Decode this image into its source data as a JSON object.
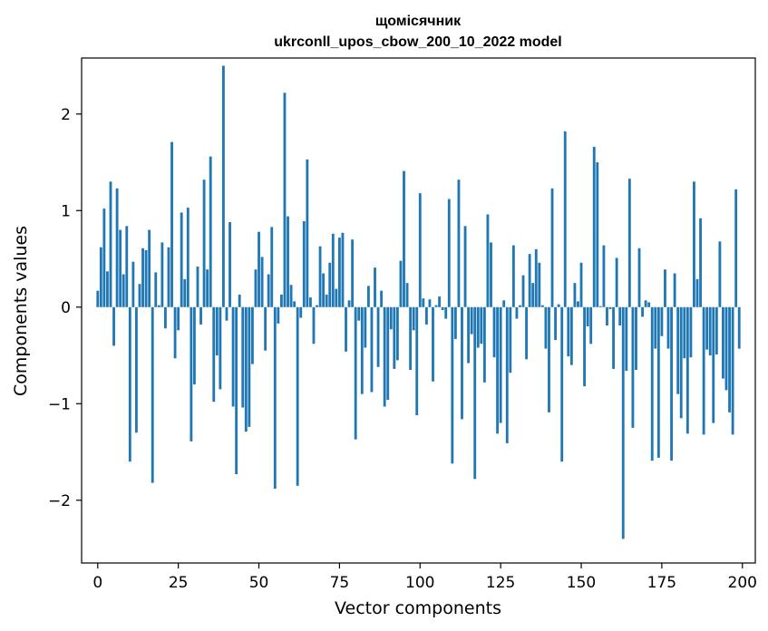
{
  "chart_data": {
    "type": "bar",
    "title_line1": "щомісячник",
    "title_line2": "ukrconll_upos_cbow_200_10_2022 model",
    "xlabel": "Vector components",
    "ylabel": "Components values",
    "xlim": [
      -5,
      204
    ],
    "ylim": [
      -2.65,
      2.58
    ],
    "xticks": [
      0,
      25,
      50,
      75,
      100,
      125,
      150,
      175,
      200
    ],
    "yticks": [
      -2,
      -1,
      0,
      1,
      2
    ],
    "bar_color": "#1f77b4",
    "values": [
      0.17,
      0.62,
      1.02,
      0.37,
      1.3,
      -0.4,
      1.23,
      0.8,
      0.34,
      0.84,
      -1.6,
      0.47,
      -1.3,
      0.24,
      0.61,
      0.59,
      0.8,
      -1.82,
      0.36,
      0.02,
      0.67,
      -0.22,
      0.62,
      1.71,
      -0.53,
      -0.24,
      0.98,
      0.29,
      1.03,
      -1.39,
      -0.8,
      0.42,
      -0.18,
      1.32,
      0.39,
      1.56,
      -0.98,
      -0.5,
      -0.85,
      2.5,
      -0.14,
      0.88,
      -1.03,
      -1.73,
      0.13,
      -1.04,
      -1.29,
      -1.24,
      -0.59,
      0.39,
      0.78,
      0.52,
      -0.45,
      0.34,
      0.83,
      -1.88,
      -0.17,
      0.13,
      2.22,
      0.94,
      0.23,
      0.06,
      -1.85,
      -0.11,
      0.89,
      1.53,
      0.1,
      -0.38,
      0.02,
      0.63,
      0.35,
      0.13,
      0.46,
      0.76,
      0.19,
      0.72,
      0.77,
      -0.46,
      0.07,
      0.7,
      -1.37,
      -0.14,
      -0.9,
      -0.42,
      0.22,
      -0.88,
      0.41,
      -0.62,
      0.17,
      -1.03,
      -0.96,
      -0.23,
      -0.64,
      -0.55,
      0.48,
      1.41,
      0.25,
      -0.65,
      -0.24,
      -1.12,
      1.18,
      0.09,
      -0.18,
      0.08,
      -0.77,
      0.02,
      0.11,
      -0.03,
      -0.12,
      1.12,
      -1.62,
      -0.33,
      1.32,
      -1.16,
      0.84,
      -0.58,
      -0.28,
      -1.78,
      -0.42,
      -0.38,
      -0.78,
      0.96,
      0.67,
      -0.52,
      -1.31,
      -1.2,
      0.07,
      -1.41,
      -0.68,
      0.64,
      -0.12,
      0.02,
      0.33,
      -0.54,
      0.55,
      0.25,
      0.6,
      0.46,
      0.02,
      -0.43,
      -1.09,
      1.23,
      -0.34,
      0.03,
      -1.6,
      1.82,
      -0.51,
      -0.6,
      0.25,
      0.06,
      0.46,
      -0.82,
      -0.2,
      -0.38,
      1.66,
      1.5,
      0.01,
      0.64,
      -0.19,
      -0.02,
      -0.64,
      0.51,
      -0.19,
      -2.4,
      -0.66,
      1.33,
      -1.25,
      -0.65,
      0.61,
      -0.1,
      0.07,
      0.05,
      -1.59,
      -0.43,
      -1.56,
      -0.3,
      0.39,
      -0.43,
      -1.59,
      0.35,
      -0.9,
      -1.15,
      -0.53,
      -1.31,
      -0.52,
      1.3,
      0.29,
      0.92,
      -1.32,
      -0.44,
      -0.5,
      -1.2,
      -0.49,
      0.68,
      -0.74,
      -0.86,
      -1.09,
      -1.32,
      1.22,
      -0.43
    ]
  }
}
